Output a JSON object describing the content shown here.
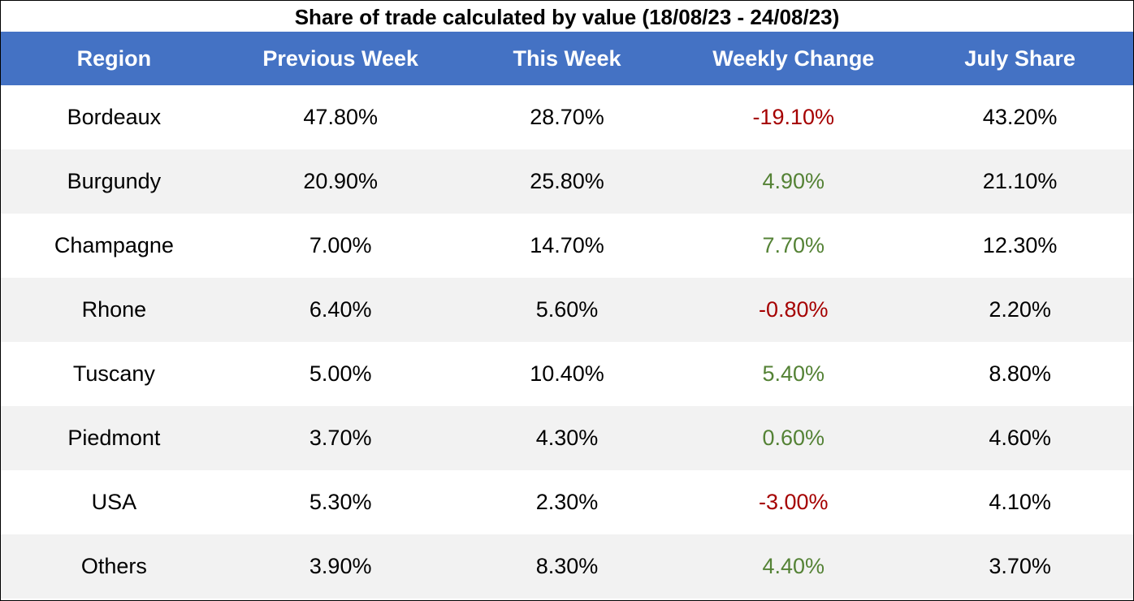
{
  "chart_data": {
    "type": "table",
    "title": "Share of trade calculated by value (18/08/23 - 24/08/23)",
    "columns": [
      "Region",
      "Previous Week",
      "This Week",
      "Weekly Change",
      "July Share"
    ],
    "rows": [
      {
        "region": "Bordeaux",
        "previous_week": "47.80%",
        "this_week": "28.70%",
        "weekly_change": "-19.10%",
        "july_share": "43.20%"
      },
      {
        "region": "Burgundy",
        "previous_week": "20.90%",
        "this_week": "25.80%",
        "weekly_change": "4.90%",
        "july_share": "21.10%"
      },
      {
        "region": "Champagne",
        "previous_week": "7.00%",
        "this_week": "14.70%",
        "weekly_change": "7.70%",
        "july_share": "12.30%"
      },
      {
        "region": "Rhone",
        "previous_week": "6.40%",
        "this_week": "5.60%",
        "weekly_change": "-0.80%",
        "july_share": "2.20%"
      },
      {
        "region": "Tuscany",
        "previous_week": "5.00%",
        "this_week": "10.40%",
        "weekly_change": "5.40%",
        "july_share": "8.80%"
      },
      {
        "region": "Piedmont",
        "previous_week": "3.70%",
        "this_week": "4.30%",
        "weekly_change": "0.60%",
        "july_share": "4.60%"
      },
      {
        "region": "USA",
        "previous_week": "5.30%",
        "this_week": "2.30%",
        "weekly_change": "-3.00%",
        "july_share": "4.10%"
      },
      {
        "region": "Others",
        "previous_week": "3.90%",
        "this_week": "8.30%",
        "weekly_change": "4.40%",
        "july_share": "3.70%"
      }
    ],
    "colors": {
      "header_background": "#4472c4",
      "header_text": "#ffffff",
      "stripe_background": "#f2f2f2",
      "negative_change": "#a50000",
      "positive_change": "#548235"
    }
  }
}
